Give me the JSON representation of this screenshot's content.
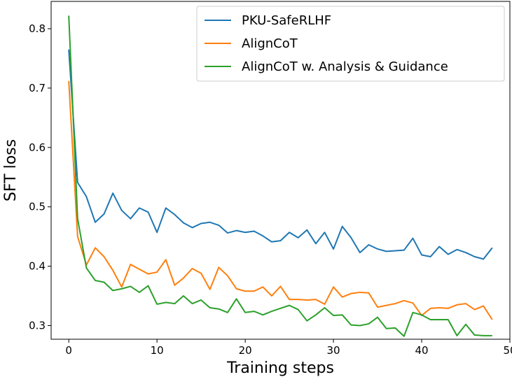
{
  "chart_data": {
    "type": "line",
    "xlabel": "Training steps",
    "ylabel": "SFT loss",
    "xlim": [
      -2,
      50
    ],
    "ylim": [
      0.277,
      0.846
    ],
    "x_ticks": [
      0,
      10,
      20,
      30,
      40,
      50
    ],
    "y_ticks": [
      0.3,
      0.4,
      0.5,
      0.6,
      0.7,
      0.8
    ],
    "grid": false,
    "legend_position": "top-right",
    "x": [
      0,
      1,
      2,
      3,
      4,
      5,
      6,
      7,
      8,
      9,
      10,
      11,
      12,
      13,
      14,
      15,
      16,
      17,
      18,
      19,
      20,
      21,
      22,
      23,
      24,
      25,
      26,
      27,
      28,
      29,
      30,
      31,
      32,
      33,
      34,
      35,
      36,
      37,
      38,
      39,
      40,
      41,
      42,
      43,
      44,
      45,
      46,
      47,
      48
    ],
    "series": [
      {
        "name": "PKU-SafeRLHF",
        "color": "#1f77b4",
        "values": [
          0.765,
          0.541,
          0.517,
          0.474,
          0.488,
          0.523,
          0.494,
          0.48,
          0.498,
          0.491,
          0.457,
          0.498,
          0.487,
          0.473,
          0.465,
          0.472,
          0.474,
          0.469,
          0.456,
          0.46,
          0.457,
          0.459,
          0.451,
          0.441,
          0.443,
          0.457,
          0.448,
          0.461,
          0.438,
          0.457,
          0.429,
          0.467,
          0.448,
          0.423,
          0.436,
          0.429,
          0.425,
          0.426,
          0.427,
          0.447,
          0.419,
          0.416,
          0.433,
          0.42,
          0.428,
          0.423,
          0.416,
          0.412,
          0.431
        ]
      },
      {
        "name": "AlignCoT",
        "color": "#ff7f0e",
        "values": [
          0.712,
          0.45,
          0.402,
          0.431,
          0.416,
          0.393,
          0.365,
          0.403,
          0.395,
          0.387,
          0.39,
          0.411,
          0.368,
          0.38,
          0.396,
          0.388,
          0.361,
          0.398,
          0.384,
          0.362,
          0.358,
          0.358,
          0.365,
          0.35,
          0.366,
          0.344,
          0.344,
          0.343,
          0.344,
          0.336,
          0.365,
          0.348,
          0.354,
          0.356,
          0.355,
          0.331,
          0.334,
          0.337,
          0.342,
          0.338,
          0.317,
          0.329,
          0.33,
          0.329,
          0.335,
          0.337,
          0.327,
          0.333,
          0.31
        ]
      },
      {
        "name": "AlignCoT w. Analysis & Guidance",
        "color": "#2ca02c",
        "values": [
          0.822,
          0.48,
          0.397,
          0.376,
          0.373,
          0.359,
          0.362,
          0.366,
          0.356,
          0.367,
          0.336,
          0.339,
          0.337,
          0.35,
          0.337,
          0.343,
          0.33,
          0.328,
          0.322,
          0.345,
          0.322,
          0.324,
          0.318,
          0.324,
          0.329,
          0.334,
          0.327,
          0.308,
          0.318,
          0.33,
          0.317,
          0.318,
          0.301,
          0.3,
          0.303,
          0.314,
          0.295,
          0.296,
          0.282,
          0.322,
          0.318,
          0.31,
          0.31,
          0.31,
          0.283,
          0.302,
          0.284,
          0.283,
          0.283
        ]
      }
    ]
  }
}
